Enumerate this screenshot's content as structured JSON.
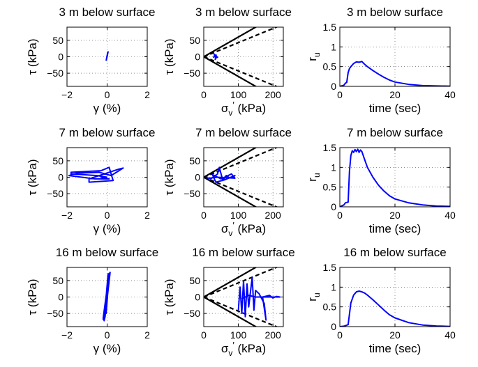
{
  "chart_data": [
    {
      "id": "r0c0",
      "type": "line",
      "title": "3 m below surface",
      "xlabel": "γ  (%)",
      "ylabel": "τ  (kPa)",
      "xlim": [
        -2,
        2
      ],
      "ylim": [
        -90,
        90
      ],
      "xticks": [
        -2,
        0,
        2
      ],
      "yticks": [
        -50,
        0,
        50
      ],
      "grid": true,
      "series": [
        {
          "color": "#0000ff",
          "points": [
            [
              -0.05,
              -12
            ],
            [
              0.02,
              10
            ],
            [
              -0.03,
              -8
            ],
            [
              0.05,
              15
            ],
            [
              -0.04,
              -10
            ],
            [
              0.03,
              12
            ],
            [
              0.0,
              0
            ]
          ]
        }
      ]
    },
    {
      "id": "r0c1",
      "type": "line",
      "title": "3 m below surface",
      "xlabel": "σv′  (kPa)",
      "ylabel": "τ  (kPa)",
      "xlim": [
        0,
        230
      ],
      "ylim": [
        -90,
        90
      ],
      "xticks": [
        0,
        100,
        200
      ],
      "yticks": [
        -50,
        0,
        50
      ],
      "grid": true,
      "series": [
        {
          "color": "#0000ff",
          "points": [
            [
              28,
              -3
            ],
            [
              32,
              6
            ],
            [
              35,
              -5
            ],
            [
              30,
              8
            ],
            [
              38,
              0
            ],
            [
              33,
              -8
            ],
            [
              36,
              5
            ],
            [
              31,
              2
            ],
            [
              40,
              -2
            ],
            [
              34,
              4
            ]
          ]
        }
      ],
      "envelopes": [
        {
          "style": "solid",
          "slope": 0.6
        },
        {
          "style": "dashed",
          "slope": 0.43
        }
      ]
    },
    {
      "id": "r0c2",
      "type": "line",
      "title": "3 m below surface",
      "xlabel": "time (sec)",
      "ylabel": "r_u",
      "xlim": [
        0,
        40
      ],
      "ylim": [
        0,
        1.5
      ],
      "xticks": [
        0,
        20,
        40
      ],
      "yticks": [
        0,
        0.5,
        1,
        1.5
      ],
      "grid": true,
      "series": [
        {
          "color": "#0000ff",
          "points": [
            [
              0,
              0
            ],
            [
              1.5,
              0.03
            ],
            [
              2,
              0.08
            ],
            [
              2.5,
              0.1
            ],
            [
              3,
              0.35
            ],
            [
              3.5,
              0.45
            ],
            [
              4,
              0.5
            ],
            [
              5,
              0.58
            ],
            [
              6,
              0.62
            ],
            [
              7,
              0.61
            ],
            [
              8,
              0.63
            ],
            [
              9,
              0.56
            ],
            [
              10,
              0.5
            ],
            [
              12,
              0.4
            ],
            [
              14,
              0.31
            ],
            [
              16,
              0.23
            ],
            [
              18,
              0.16
            ],
            [
              20,
              0.11
            ],
            [
              25,
              0.05
            ],
            [
              30,
              0.02
            ],
            [
              35,
              0.01
            ],
            [
              40,
              0.005
            ]
          ]
        }
      ]
    },
    {
      "id": "r1c0",
      "type": "line",
      "title": "7 m below surface",
      "xlabel": "γ  (%)",
      "ylabel": "τ  (kPa)",
      "xlim": [
        -2,
        2
      ],
      "ylim": [
        -90,
        90
      ],
      "xticks": [
        -2,
        0,
        2
      ],
      "yticks": [
        -50,
        0,
        50
      ],
      "grid": true,
      "series": [
        {
          "color": "#0000ff",
          "points": [
            [
              0,
              0
            ],
            [
              -0.5,
              5
            ],
            [
              -1.8,
              10
            ],
            [
              -1.8,
              15
            ],
            [
              -0.3,
              20
            ],
            [
              0.1,
              30
            ],
            [
              0.3,
              -10
            ],
            [
              -0.9,
              -15
            ],
            [
              -0.9,
              -5
            ],
            [
              0.6,
              25
            ],
            [
              0.8,
              28
            ],
            [
              0.2,
              5
            ],
            [
              -0.4,
              15
            ],
            [
              -1.5,
              12
            ],
            [
              -1.9,
              5
            ],
            [
              -0.6,
              -5
            ],
            [
              0.1,
              -5
            ],
            [
              -0.3,
              0
            ],
            [
              0.0,
              0
            ]
          ]
        }
      ]
    },
    {
      "id": "r1c1",
      "type": "line",
      "title": "7 m below surface",
      "xlabel": "σv′  (kPa)",
      "ylabel": "τ  (kPa)",
      "xlim": [
        0,
        230
      ],
      "ylim": [
        -90,
        90
      ],
      "xticks": [
        0,
        100,
        200
      ],
      "yticks": [
        -50,
        0,
        50
      ],
      "grid": true,
      "series": [
        {
          "color": "#0000ff",
          "points": [
            [
              5,
              0
            ],
            [
              20,
              -5
            ],
            [
              40,
              10
            ],
            [
              45,
              30
            ],
            [
              55,
              -10
            ],
            [
              65,
              5
            ],
            [
              75,
              -2
            ],
            [
              85,
              0
            ],
            [
              90,
              5
            ],
            [
              60,
              -8
            ],
            [
              35,
              -15
            ],
            [
              25,
              8
            ],
            [
              50,
              -5
            ],
            [
              80,
              10
            ],
            [
              90,
              -3
            ],
            [
              40,
              0
            ],
            [
              15,
              -3
            ],
            [
              5,
              0
            ]
          ]
        }
      ],
      "envelopes": [
        {
          "style": "solid",
          "slope": 0.6
        },
        {
          "style": "dashed",
          "slope": 0.43
        }
      ]
    },
    {
      "id": "r1c2",
      "type": "line",
      "title": "7 m below surface",
      "xlabel": "time (sec)",
      "ylabel": "r_u",
      "xlim": [
        0,
        40
      ],
      "ylim": [
        0,
        1.5
      ],
      "xticks": [
        0,
        20,
        40
      ],
      "yticks": [
        0,
        0.5,
        1,
        1.5
      ],
      "grid": true,
      "series": [
        {
          "color": "#0000ff",
          "points": [
            [
              0,
              0
            ],
            [
              1.5,
              0.05
            ],
            [
              2,
              0.1
            ],
            [
              3,
              0.12
            ],
            [
              3.5,
              0.9
            ],
            [
              4,
              1.3
            ],
            [
              4.5,
              1.42
            ],
            [
              5,
              1.38
            ],
            [
              5.5,
              1.45
            ],
            [
              6,
              1.4
            ],
            [
              6.5,
              1.46
            ],
            [
              7,
              1.38
            ],
            [
              7.5,
              1.44
            ],
            [
              8,
              1.4
            ],
            [
              9,
              1.2
            ],
            [
              10,
              1.0
            ],
            [
              12,
              0.75
            ],
            [
              14,
              0.55
            ],
            [
              16,
              0.4
            ],
            [
              18,
              0.28
            ],
            [
              20,
              0.2
            ],
            [
              25,
              0.1
            ],
            [
              30,
              0.05
            ],
            [
              35,
              0.02
            ],
            [
              40,
              0.01
            ]
          ]
        }
      ]
    },
    {
      "id": "r2c0",
      "type": "line",
      "title": "16 m below surface",
      "xlabel": "γ  (%)",
      "ylabel": "τ  (kPa)",
      "xlim": [
        -2,
        2
      ],
      "ylim": [
        -90,
        90
      ],
      "xticks": [
        -2,
        0,
        2
      ],
      "yticks": [
        -50,
        0,
        50
      ],
      "grid": true,
      "series": [
        {
          "color": "#0000ff",
          "points": [
            [
              -0.2,
              -70
            ],
            [
              0.1,
              65
            ],
            [
              0.15,
              75
            ],
            [
              -0.1,
              -60
            ],
            [
              -0.15,
              -72
            ],
            [
              0.05,
              70
            ],
            [
              0.12,
              60
            ],
            [
              -0.2,
              -65
            ],
            [
              0.1,
              72
            ],
            [
              -0.05,
              -50
            ],
            [
              0.08,
              50
            ],
            [
              0,
              0
            ]
          ]
        }
      ]
    },
    {
      "id": "r2c1",
      "type": "line",
      "title": "16 m below surface",
      "xlabel": "σv′  (kPa)",
      "ylabel": "τ  (kPa)",
      "xlim": [
        0,
        230
      ],
      "ylim": [
        -90,
        90
      ],
      "xticks": [
        0,
        100,
        200
      ],
      "yticks": [
        -50,
        0,
        50
      ],
      "grid": true,
      "series": [
        {
          "color": "#0000ff",
          "points": [
            [
              100,
              -40
            ],
            [
              105,
              30
            ],
            [
              110,
              -50
            ],
            [
              115,
              50
            ],
            [
              120,
              -60
            ],
            [
              125,
              40
            ],
            [
              130,
              -30
            ],
            [
              140,
              60
            ],
            [
              145,
              -40
            ],
            [
              150,
              20
            ],
            [
              160,
              10
            ],
            [
              175,
              -20
            ],
            [
              180,
              -70
            ],
            [
              170,
              0
            ],
            [
              190,
              5
            ],
            [
              200,
              -3
            ],
            [
              210,
              2
            ],
            [
              220,
              0
            ],
            [
              200,
              0
            ],
            [
              150,
              0
            ],
            [
              130,
              5
            ],
            [
              110,
              -5
            ]
          ]
        }
      ],
      "envelopes": [
        {
          "style": "solid",
          "slope": 0.6
        },
        {
          "style": "dashed",
          "slope": 0.43
        }
      ]
    },
    {
      "id": "r2c2",
      "type": "line",
      "title": "16 m below surface",
      "xlabel": "time (sec)",
      "ylabel": "r_u",
      "xlim": [
        0,
        40
      ],
      "ylim": [
        0,
        1.5
      ],
      "xticks": [
        0,
        20,
        40
      ],
      "yticks": [
        0,
        0.5,
        1,
        1.5
      ],
      "grid": true,
      "series": [
        {
          "color": "#0000ff",
          "points": [
            [
              0,
              0
            ],
            [
              1.5,
              0.01
            ],
            [
              3,
              0.05
            ],
            [
              4,
              0.6
            ],
            [
              5,
              0.8
            ],
            [
              6,
              0.88
            ],
            [
              7,
              0.9
            ],
            [
              8,
              0.88
            ],
            [
              9,
              0.85
            ],
            [
              10,
              0.8
            ],
            [
              12,
              0.68
            ],
            [
              14,
              0.55
            ],
            [
              16,
              0.42
            ],
            [
              18,
              0.3
            ],
            [
              20,
              0.22
            ],
            [
              25,
              0.1
            ],
            [
              30,
              0.04
            ],
            [
              35,
              0.015
            ],
            [
              40,
              0.005
            ]
          ]
        }
      ]
    }
  ]
}
